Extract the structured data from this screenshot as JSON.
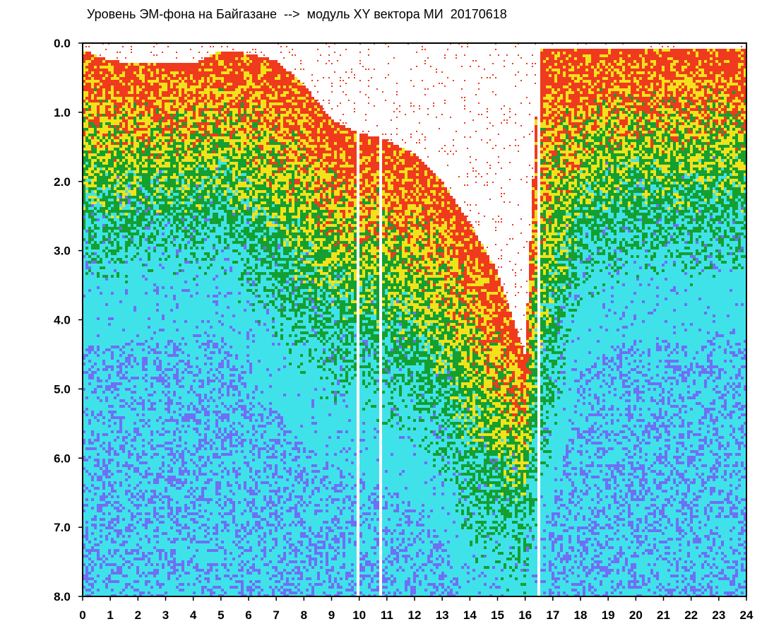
{
  "chart_data": {
    "type": "heatmap",
    "title": "Уровень ЭМ-фона на Байгазане  -->  модуль XY вектора МИ  20170618",
    "xlabel": "",
    "ylabel": "",
    "xlim": [
      0,
      24
    ],
    "ylim": [
      0,
      8
    ],
    "y_axis_inverted": true,
    "x_ticks": [
      "0",
      "1",
      "2",
      "3",
      "4",
      "5",
      "6",
      "7",
      "8",
      "9",
      "10",
      "11",
      "12",
      "13",
      "14",
      "15",
      "16",
      "17",
      "18",
      "19",
      "20",
      "21",
      "22",
      "23",
      "24"
    ],
    "y_ticks": [
      "0.0",
      "1.0",
      "2.0",
      "3.0",
      "4.0",
      "5.0",
      "6.0",
      "7.0",
      "8.0"
    ],
    "color_scale": [
      "#f03a1e",
      "#f2e21a",
      "#14a030",
      "#40e2ea",
      "#6f6ff5"
    ],
    "red_upper_boundary_by_hour": [
      [
        0,
        0.1
      ],
      [
        1,
        0.25
      ],
      [
        2,
        0.3
      ],
      [
        3,
        0.3
      ],
      [
        4,
        0.3
      ],
      [
        5,
        0.1
      ],
      [
        6,
        0.15
      ],
      [
        7,
        0.25
      ],
      [
        8,
        0.6
      ],
      [
        9,
        1.1
      ],
      [
        10,
        1.3
      ],
      [
        11,
        1.4
      ],
      [
        12,
        1.6
      ],
      [
        13,
        2.0
      ],
      [
        14,
        2.6
      ],
      [
        15,
        3.3
      ],
      [
        16,
        4.5
      ],
      [
        16.5,
        0.1
      ],
      [
        17,
        0.1
      ],
      [
        18,
        0.1
      ],
      [
        19,
        0.1
      ],
      [
        20,
        0.1
      ],
      [
        21,
        0.1
      ],
      [
        22,
        0.1
      ],
      [
        23,
        0.1
      ],
      [
        24,
        0.1
      ]
    ],
    "blue_dominant_depth_by_hour": [
      [
        0,
        3.5
      ],
      [
        1,
        3.6
      ],
      [
        2,
        3.5
      ],
      [
        3,
        3.4
      ],
      [
        4,
        3.5
      ],
      [
        5,
        3.3
      ],
      [
        6,
        4.0
      ],
      [
        7,
        4.5
      ],
      [
        8,
        5.0
      ],
      [
        9,
        5.3
      ],
      [
        10,
        5.5
      ],
      [
        11,
        5.6
      ],
      [
        12,
        5.9
      ],
      [
        13,
        6.4
      ],
      [
        14,
        7.5
      ],
      [
        15,
        8.0
      ],
      [
        16,
        8.0
      ],
      [
        17,
        6.0
      ],
      [
        18,
        4.0
      ],
      [
        19,
        3.6
      ],
      [
        20,
        3.5
      ],
      [
        21,
        3.5
      ],
      [
        22,
        3.6
      ],
      [
        23,
        3.4
      ],
      [
        24,
        3.6
      ]
    ],
    "gaps_hours": [
      10.0,
      10.75,
      16.5
    ]
  }
}
